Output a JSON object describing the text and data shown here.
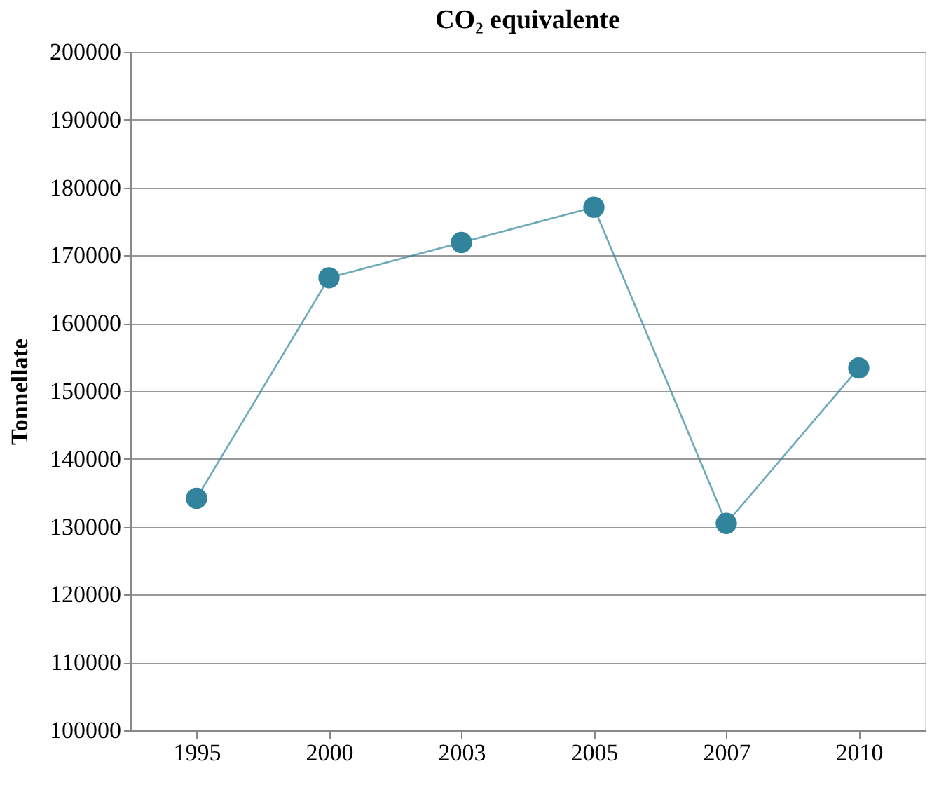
{
  "chart_data": {
    "type": "line",
    "title": "CO₂ equivalente",
    "ylabel": "Tonnellate",
    "categories": [
      "1995",
      "2000",
      "2003",
      "2005",
      "2007",
      "2010"
    ],
    "series": [
      {
        "color": "#31849b",
        "values": [
          134200,
          166700,
          171900,
          177100,
          130500,
          153400
        ]
      }
    ],
    "ylim": [
      100000,
      200000
    ],
    "yticks": [
      100000,
      110000,
      120000,
      130000,
      140000,
      150000,
      160000,
      170000,
      180000,
      190000,
      200000
    ],
    "grid": "y",
    "marker": "circle",
    "line_style": "solid"
  }
}
